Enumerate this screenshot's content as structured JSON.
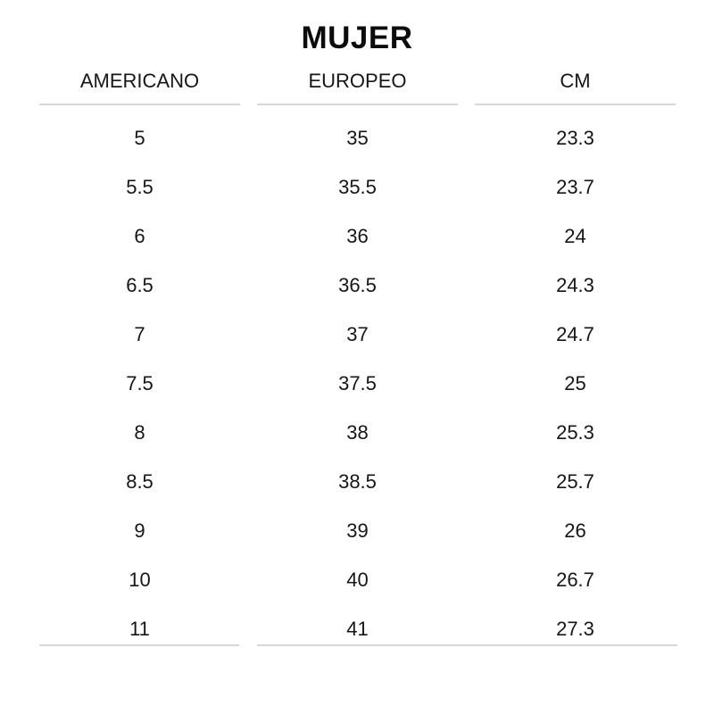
{
  "chart_data": {
    "type": "table",
    "title": "MUJER",
    "columns": [
      "AMERICANO",
      "EUROPEO",
      "CM"
    ],
    "rows": [
      [
        "5",
        "35",
        "23.3"
      ],
      [
        "5.5",
        "35.5",
        "23.7"
      ],
      [
        "6",
        "36",
        "24"
      ],
      [
        "6.5",
        "36.5",
        "24.3"
      ],
      [
        "7",
        "37",
        "24.7"
      ],
      [
        "7.5",
        "37.5",
        "25"
      ],
      [
        "8",
        "38",
        "25.3"
      ],
      [
        "8.5",
        "38.5",
        "25.7"
      ],
      [
        "9",
        "39",
        "26"
      ],
      [
        "10",
        "40",
        "26.7"
      ],
      [
        "11",
        "41",
        "27.3"
      ]
    ],
    "layout": {
      "header_underline": true,
      "bottom_border": true,
      "grid": "off",
      "column_alignment": "center"
    }
  },
  "colors": {
    "title_text": "#0c0c0c",
    "body_text": "#161616",
    "divider": "#d7d7d7",
    "background": "#ffffff"
  }
}
